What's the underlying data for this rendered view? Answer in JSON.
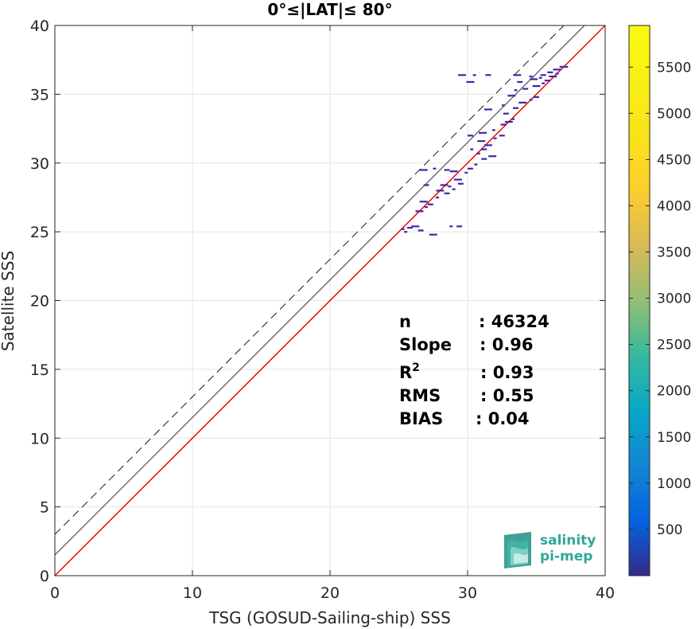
{
  "chart_data": {
    "type": "heatmap",
    "title": "0°≤|LAT|≤ 80°",
    "xlabel": "TSG (GOSUD-Sailing-ship) SSS",
    "ylabel": "Satellite SSS",
    "xlim": [
      0,
      40
    ],
    "ylim": [
      0,
      40
    ],
    "xticks": [
      "0",
      "10",
      "20",
      "30",
      "40"
    ],
    "yticks": [
      "0",
      "5",
      "10",
      "15",
      "20",
      "25",
      "30",
      "35",
      "40"
    ],
    "grid": true,
    "colorbar": {
      "ticks": [
        "500",
        "1000",
        "1500",
        "2000",
        "2500",
        "3000",
        "3500",
        "4000",
        "4500",
        "5000",
        "5500"
      ],
      "tick_values": [
        500,
        1000,
        1500,
        2000,
        2500,
        3000,
        3500,
        4000,
        4500,
        5000,
        5500
      ],
      "range": [
        0,
        5950
      ],
      "colormap": "parula"
    },
    "reference_lines": {
      "identity": {
        "slope": 1,
        "intercept": 1.5,
        "color": "#000000",
        "style": "solid"
      },
      "upper_bound": {
        "slope": 1,
        "intercept": 3.0,
        "color": "#000000",
        "style": "dashed"
      },
      "lower_bound": {
        "slope": 1,
        "intercept": 0,
        "color": "#000000",
        "style": "dashed"
      },
      "regression": {
        "slope": 1,
        "intercept": 0,
        "color": "#ff0000",
        "style": "solid"
      }
    },
    "density_points": [
      [
        25.3,
        25.2
      ],
      [
        25.8,
        25.3
      ],
      [
        26.2,
        25.4
      ],
      [
        25.5,
        25.0
      ],
      [
        26.6,
        25.1
      ],
      [
        27.5,
        24.8
      ],
      [
        28.8,
        25.4
      ],
      [
        29.4,
        25.4
      ],
      [
        26.5,
        26.5
      ],
      [
        27.0,
        26.8
      ],
      [
        27.3,
        27.0
      ],
      [
        26.8,
        27.2
      ],
      [
        27.8,
        27.5
      ],
      [
        28.5,
        27.8
      ],
      [
        28.0,
        28.0
      ],
      [
        28.7,
        28.3
      ],
      [
        27.0,
        28.4
      ],
      [
        28.3,
        28.4
      ],
      [
        29.0,
        28.1
      ],
      [
        29.5,
        28.5
      ],
      [
        29.3,
        28.8
      ],
      [
        29.9,
        29.3
      ],
      [
        30.2,
        29.6
      ],
      [
        26.8,
        29.5
      ],
      [
        27.6,
        29.6
      ],
      [
        28.5,
        29.5
      ],
      [
        29.0,
        29.4
      ],
      [
        30.6,
        29.9
      ],
      [
        31.2,
        30.3
      ],
      [
        31.8,
        30.5
      ],
      [
        30.8,
        30.7
      ],
      [
        31.2,
        31.0
      ],
      [
        31.5,
        31.3
      ],
      [
        32.0,
        31.8
      ],
      [
        32.5,
        32.0
      ],
      [
        31.0,
        31.6
      ],
      [
        30.3,
        31.0
      ],
      [
        30.2,
        32.0
      ],
      [
        31.1,
        32.2
      ],
      [
        31.9,
        32.4
      ],
      [
        32.6,
        32.8
      ],
      [
        33.0,
        33.0
      ],
      [
        33.3,
        33.2
      ],
      [
        32.8,
        33.6
      ],
      [
        31.5,
        33.9
      ],
      [
        32.6,
        34.2
      ],
      [
        33.5,
        34.0
      ],
      [
        34.0,
        34.4
      ],
      [
        34.6,
        34.6
      ],
      [
        35.0,
        34.8
      ],
      [
        33.2,
        34.9
      ],
      [
        33.5,
        35.3
      ],
      [
        34.2,
        35.4
      ],
      [
        35.0,
        35.6
      ],
      [
        35.5,
        35.8
      ],
      [
        35.8,
        36.0
      ],
      [
        36.2,
        36.3
      ],
      [
        36.5,
        36.5
      ],
      [
        33.8,
        35.9
      ],
      [
        34.8,
        36.1
      ],
      [
        35.3,
        36.2
      ],
      [
        36.0,
        36.6
      ],
      [
        36.5,
        36.8
      ],
      [
        36.8,
        37.0
      ],
      [
        37.1,
        37.0
      ],
      [
        29.6,
        36.4
      ],
      [
        30.5,
        36.4
      ],
      [
        31.5,
        36.4
      ],
      [
        33.6,
        36.4
      ],
      [
        34.6,
        36.3
      ],
      [
        35.5,
        36.4
      ],
      [
        30.2,
        35.9
      ]
    ],
    "annotations": [
      {
        "key": "n",
        "value": ": 46324"
      },
      {
        "key": "Slope",
        "value": ": 0.96"
      },
      {
        "key": "R",
        "sup": "2",
        "value": ": 0.93"
      },
      {
        "key": "RMS",
        "value": ": 0.55"
      },
      {
        "key": "BIAS",
        "value": ": 0.04"
      }
    ]
  },
  "logo": {
    "line1": "salinity",
    "line2": "pi-mep",
    "color": "#2fa89a"
  }
}
